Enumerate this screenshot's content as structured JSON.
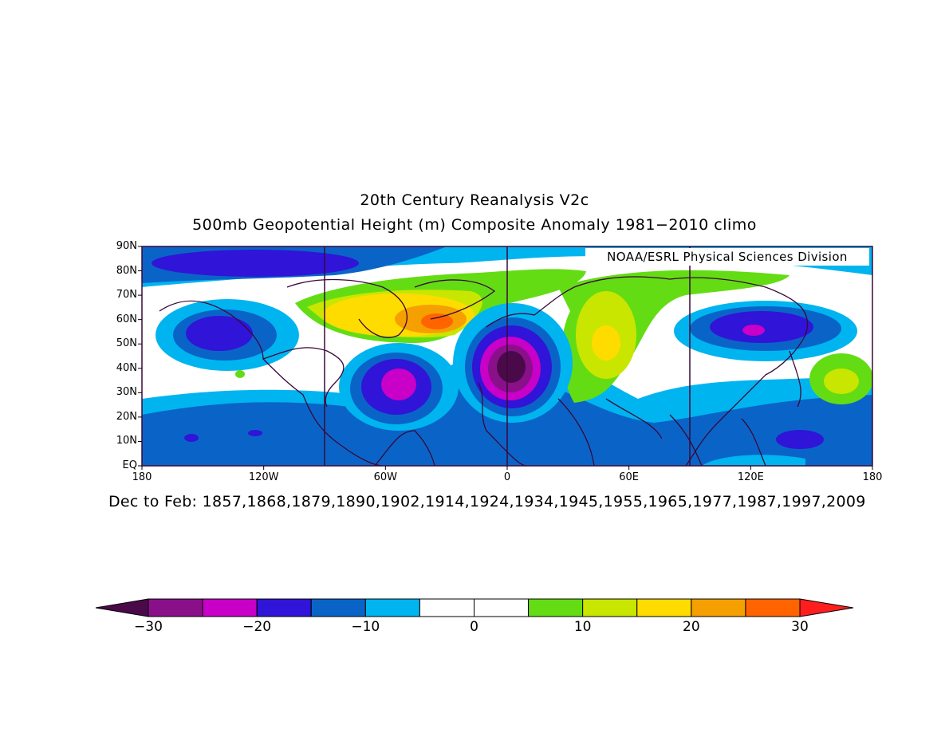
{
  "title": {
    "line1": "20th Century Reanalysis V2c",
    "line2": "500mb Geopotential Height (m) Composite Anomaly 1981−2010 climo"
  },
  "credit": "NOAA/ESRL Physical Sciences Division",
  "footer": "Dec to Feb: 1857,1868,1879,1890,1902,1914,1924,1934,1945,1955,1965,1977,1987,1997,2009",
  "map": {
    "lat_labels": [
      "90N",
      "80N",
      "70N",
      "60N",
      "50N",
      "40N",
      "30N",
      "20N",
      "10N",
      "EQ"
    ],
    "lon_labels": [
      "180",
      "120W",
      "60W",
      "0",
      "60E",
      "120E",
      "180"
    ],
    "lat_range": [
      0,
      90
    ],
    "lon_range": [
      -180,
      180
    ]
  },
  "colorbar": {
    "labels": [
      "−30",
      "−20",
      "−10",
      "0",
      "10",
      "20",
      "30"
    ],
    "levels": [
      -30,
      -25,
      -20,
      -15,
      -10,
      -5,
      0,
      5,
      10,
      15,
      20,
      25,
      30
    ],
    "colors": [
      "#4a0a4a",
      "#8a108a",
      "#c800c8",
      "#3014d8",
      "#0a64c8",
      "#00b4f0",
      "#ffffff",
      "#ffffff",
      "#64dc14",
      "#c8e600",
      "#ffdc00",
      "#f5a000",
      "#ff6400",
      "#ff1e1e"
    ]
  }
}
